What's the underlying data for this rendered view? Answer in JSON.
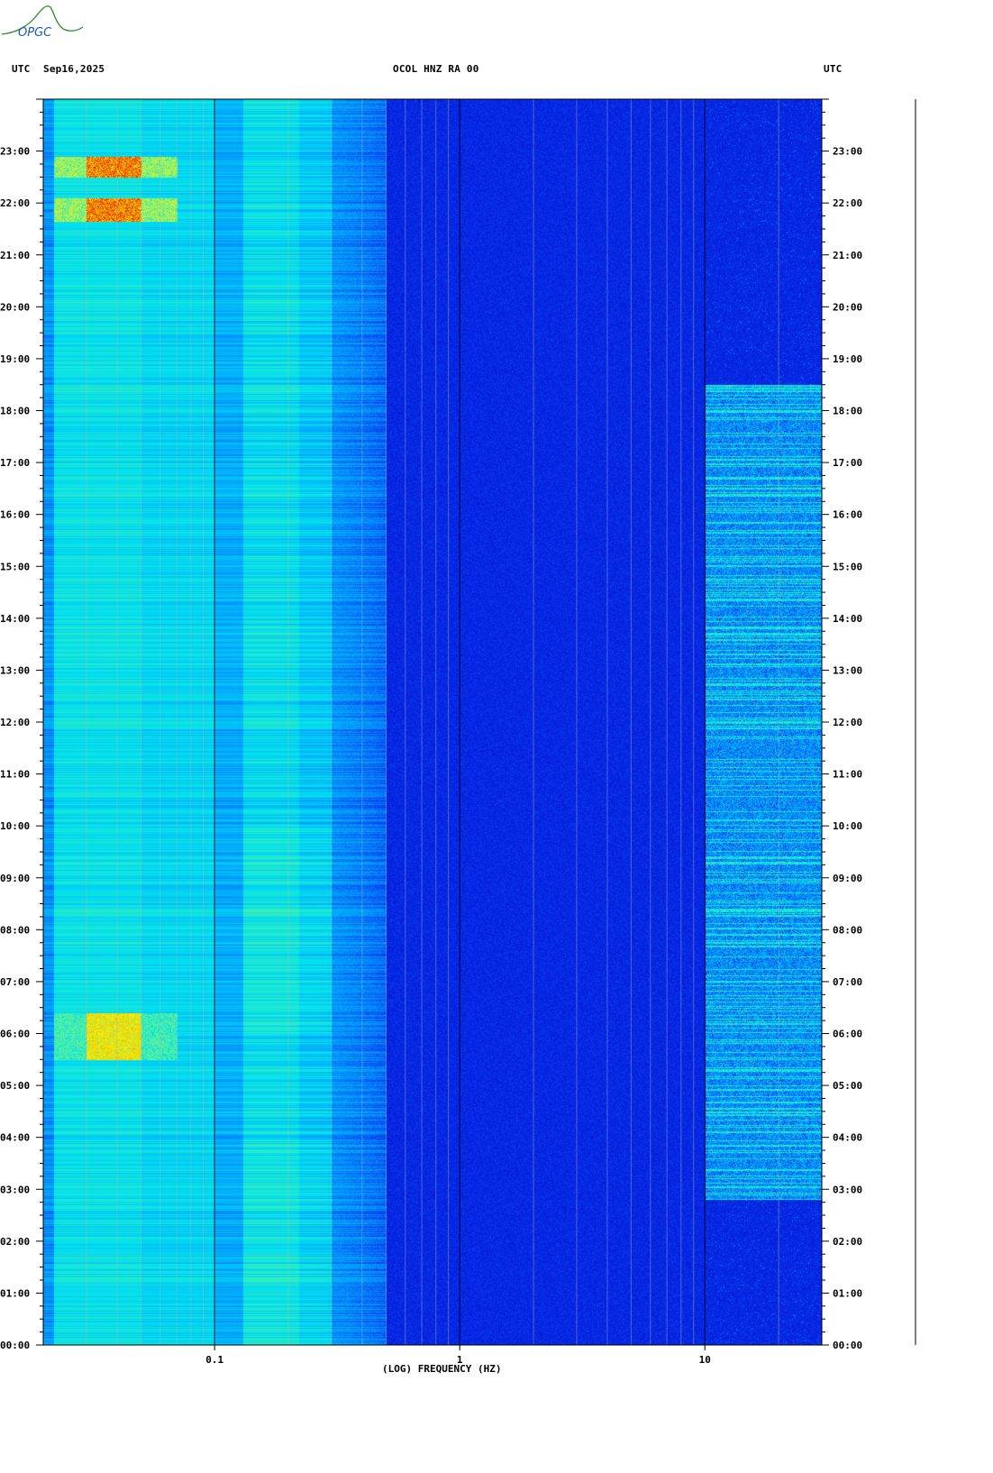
{
  "logo": {
    "text": "OPGC"
  },
  "header": {
    "left_tz": "UTC",
    "date": "Sep16,2025",
    "station": "OCOL HNZ RA 00",
    "right_tz": "UTC"
  },
  "chart_data": {
    "type": "heatmap",
    "xlabel": "(LOG) FREQUENCY (HZ)",
    "x_scale": "log",
    "x_range_hz": [
      0.02,
      30
    ],
    "x_tick_labels": [
      "0.1",
      "1",
      "10"
    ],
    "x_tick_values": [
      0.1,
      1,
      10
    ],
    "y_range_hours": [
      0,
      24
    ],
    "y_tick_labels": [
      "00:00",
      "01:00",
      "02:00",
      "03:00",
      "04:00",
      "05:00",
      "06:00",
      "07:00",
      "08:00",
      "09:00",
      "10:00",
      "11:00",
      "12:00",
      "13:00",
      "14:00",
      "15:00",
      "16:00",
      "17:00",
      "18:00",
      "19:00",
      "20:00",
      "21:00",
      "22:00",
      "23:00"
    ],
    "colormap": [
      "#0000c8",
      "#0a3cf0",
      "#00a0ff",
      "#00e0f0",
      "#40f0b0",
      "#c0f040",
      "#f8f000",
      "#ff8000",
      "#d00000"
    ],
    "high_energy_events": [
      {
        "start_hour": 21.65,
        "end_hour": 22.1,
        "f_min_hz": 0.03,
        "f_max_hz": 0.05,
        "level": "red"
      },
      {
        "start_hour": 22.5,
        "end_hour": 22.9,
        "f_min_hz": 0.03,
        "f_max_hz": 0.05,
        "level": "red"
      },
      {
        "start_hour": 5.5,
        "end_hour": 6.4,
        "f_min_hz": 0.03,
        "f_max_hz": 0.05,
        "level": "orange"
      }
    ],
    "cultural_noise_band": {
      "start_hour": 2.8,
      "end_hour": 18.5,
      "f_min_hz": 10,
      "f_max_hz": 30
    }
  }
}
